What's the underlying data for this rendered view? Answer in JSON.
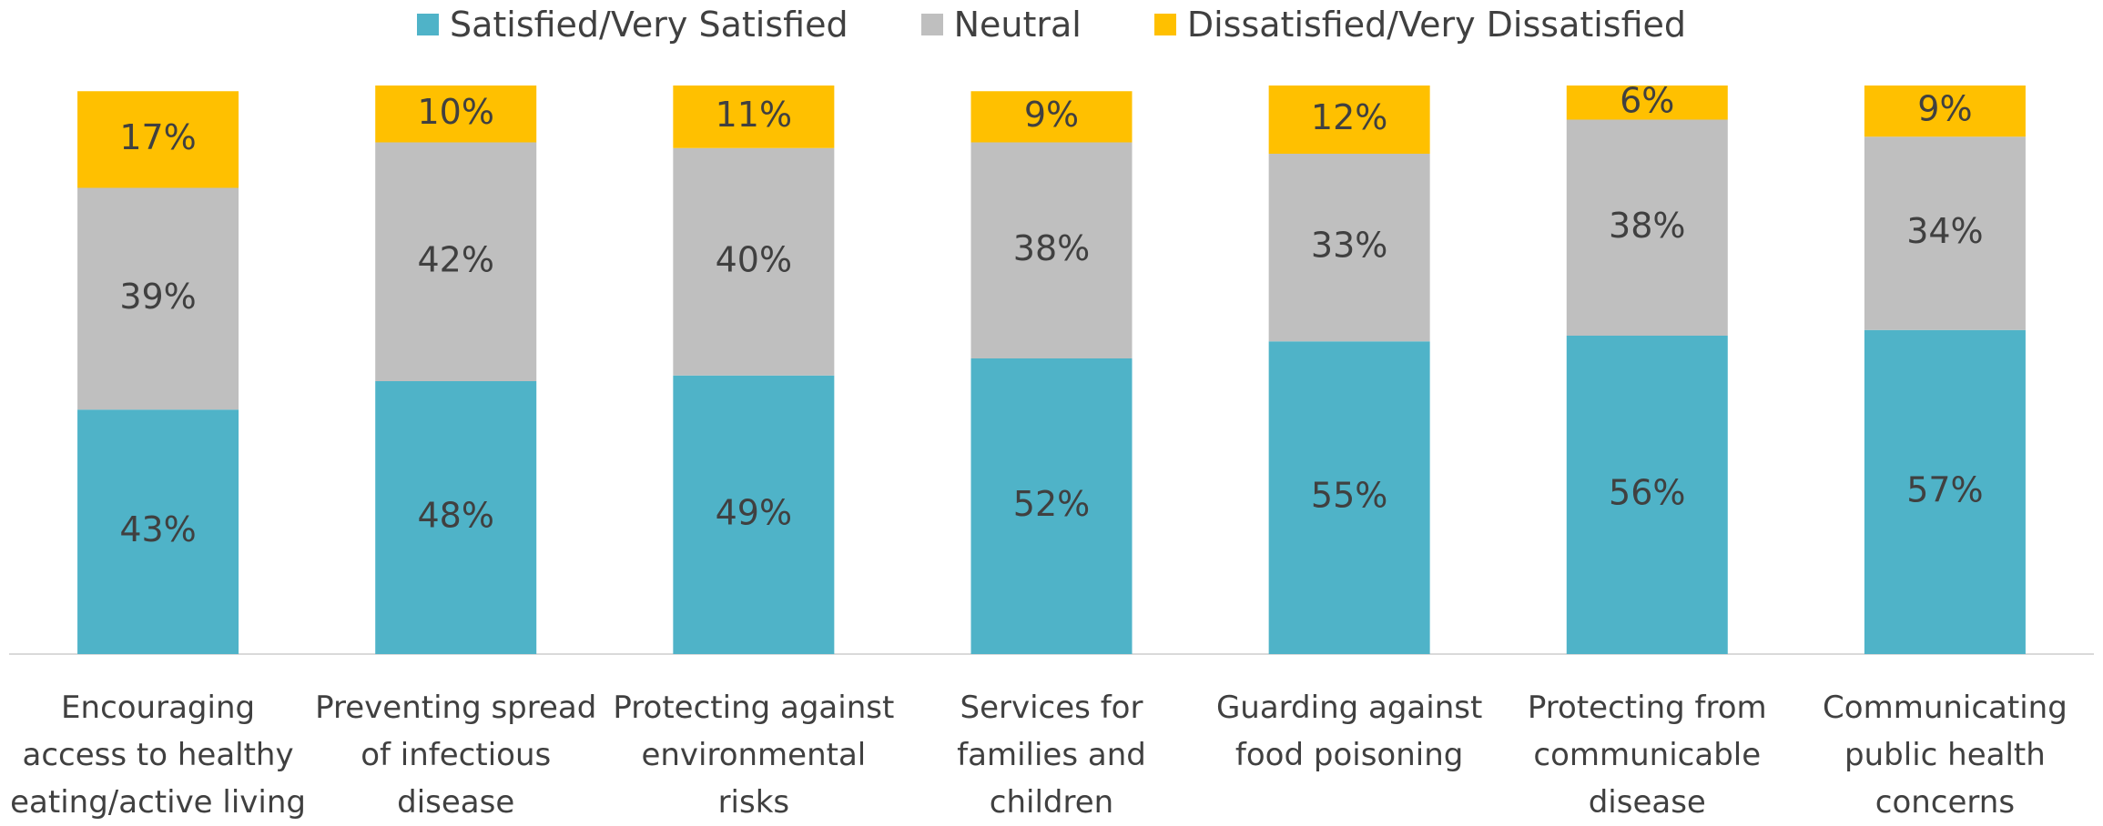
{
  "chart_data": {
    "type": "stacked_bar",
    "categories": [
      "Encouraging access to healthy eating/active living",
      "Preventing spread of infectious disease",
      "Protecting against environmental risks",
      "Services for families and children",
      "Guarding against food poisoning",
      "Protecting from communicable disease",
      "Communicating public health concerns"
    ],
    "series": [
      {
        "name": "Satisfied/Very Satisfied",
        "color": "#4fb3c8",
        "values": [
          43,
          48,
          49,
          52,
          55,
          56,
          57
        ],
        "value_labels": [
          "43%",
          "48%",
          "49%",
          "52%",
          "55%",
          "56%",
          "57%"
        ]
      },
      {
        "name": "Neutral",
        "color": "#bfbfbf",
        "values": [
          39,
          42,
          40,
          38,
          33,
          38,
          34
        ],
        "value_labels": [
          "39%",
          "42%",
          "40%",
          "38%",
          "33%",
          "38%",
          "34%"
        ]
      },
      {
        "name": "Dissatisfied/Very Dissatisfied",
        "color": "#ffc000",
        "values": [
          17,
          10,
          11,
          9,
          12,
          6,
          9
        ],
        "value_labels": [
          "17%",
          "10%",
          "11%",
          "9%",
          "12%",
          "6%",
          "9%"
        ]
      }
    ],
    "ylim": [
      0,
      100
    ],
    "legend": "top"
  }
}
